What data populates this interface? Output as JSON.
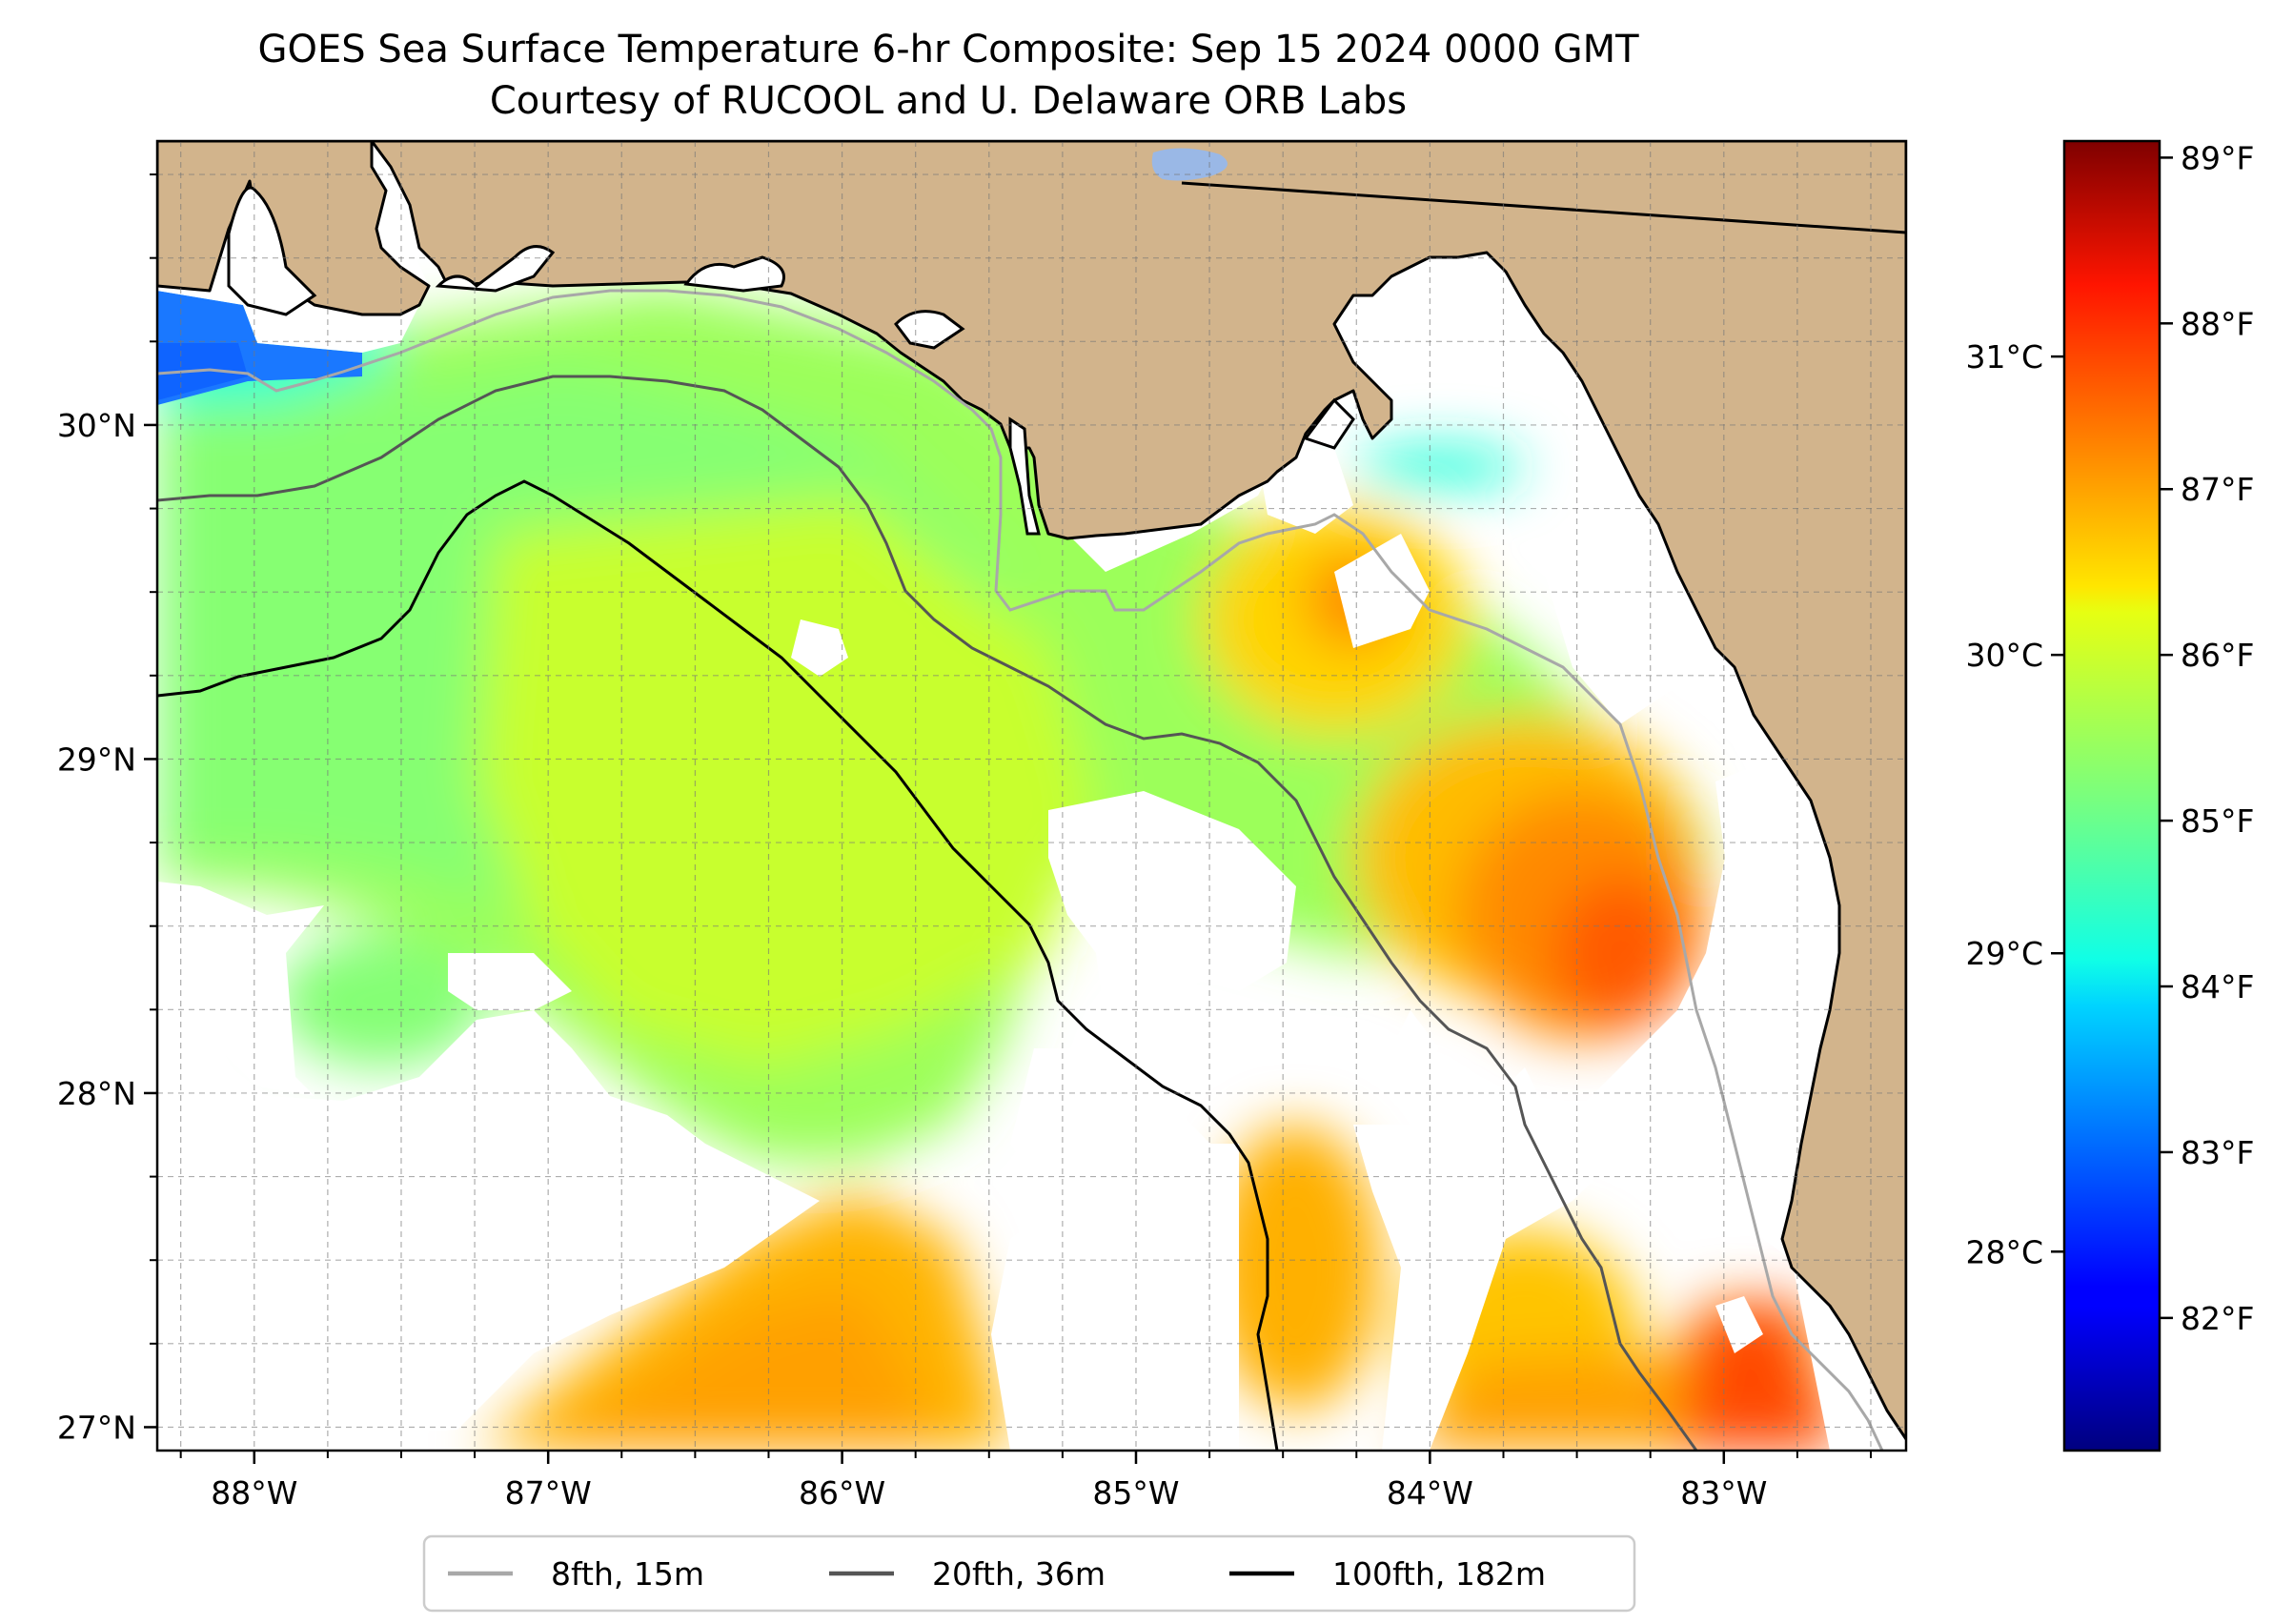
{
  "figure": {
    "title_line1": "GOES Sea Surface Temperature 6-hr Composite: Sep 15 2024 0000 GMT",
    "title_line2": "Courtesy of RUCOOL and U. Delaware ORB Labs"
  },
  "map": {
    "lon_range": [
      -88.33,
      -82.38
    ],
    "lat_range": [
      26.93,
      30.85
    ],
    "lon_ticks": [
      {
        "value": -88,
        "label": "88°W"
      },
      {
        "value": -87,
        "label": "87°W"
      },
      {
        "value": -86,
        "label": "86°W"
      },
      {
        "value": -85,
        "label": "85°W"
      },
      {
        "value": -84,
        "label": "84°W"
      },
      {
        "value": -83,
        "label": "83°W"
      }
    ],
    "lat_ticks": [
      {
        "value": 27,
        "label": "27°N"
      },
      {
        "value": 28,
        "label": "28°N"
      },
      {
        "value": 29,
        "label": "29°N"
      },
      {
        "value": 30,
        "label": "30°N"
      }
    ],
    "grid": true,
    "minor_grid_step_deg": 0.25,
    "colors": {
      "land": "#d2b48c",
      "no_data": "#ffffff",
      "lake": "#9ab8e6",
      "isobath_8fth": "#a8a8a8",
      "isobath_20fth": "#555555",
      "isobath_100fth": "#000000"
    }
  },
  "colorbar": {
    "colormap": "jet",
    "range_f": [
      81.2,
      89.1
    ],
    "f_ticks": [
      {
        "value": 82,
        "label": "82°F"
      },
      {
        "value": 83,
        "label": "83°F"
      },
      {
        "value": 84,
        "label": "84°F"
      },
      {
        "value": 85,
        "label": "85°F"
      },
      {
        "value": 86,
        "label": "86°F"
      },
      {
        "value": 87,
        "label": "87°F"
      },
      {
        "value": 88,
        "label": "88°F"
      },
      {
        "value": 89,
        "label": "89°F"
      }
    ],
    "c_ticks": [
      {
        "value": 28,
        "label": "28°C"
      },
      {
        "value": 29,
        "label": "29°C"
      },
      {
        "value": 30,
        "label": "30°C"
      },
      {
        "value": 31,
        "label": "31°C"
      }
    ]
  },
  "legend": {
    "placement": "bottom-center",
    "items": [
      {
        "label": "8fth, 15m",
        "color": "#a8a8a8"
      },
      {
        "label": "20fth, 36m",
        "color": "#555555"
      },
      {
        "label": "100fth, 182m",
        "color": "#000000"
      }
    ]
  }
}
